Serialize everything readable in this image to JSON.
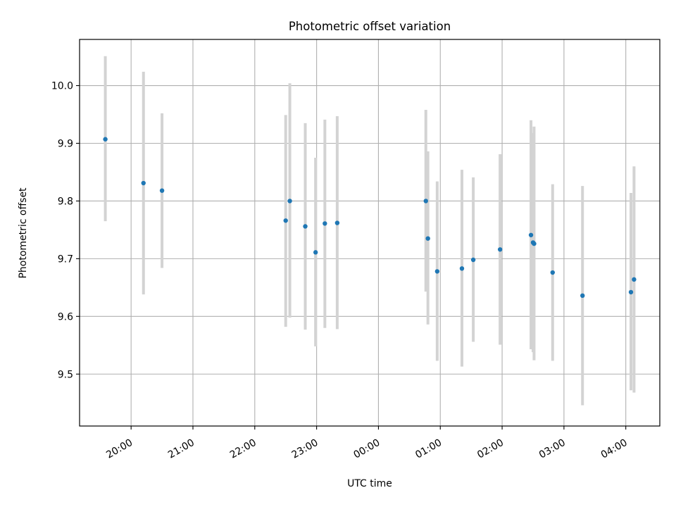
{
  "chart_data": {
    "type": "scatter",
    "title": "Photometric offset variation",
    "xlabel": "UTC time",
    "ylabel": "Photometric offset",
    "x_axis_type": "time",
    "xlim": [
      "2024-01-01T19:10",
      "2024-01-02T04:33"
    ],
    "ylim": [
      9.41,
      10.08
    ],
    "x_ticks": [
      {
        "value": "2024-01-01T20:00",
        "label": "20:00"
      },
      {
        "value": "2024-01-01T21:00",
        "label": "21:00"
      },
      {
        "value": "2024-01-01T22:00",
        "label": "22:00"
      },
      {
        "value": "2024-01-01T23:00",
        "label": "23:00"
      },
      {
        "value": "2024-01-02T00:00",
        "label": "00:00"
      },
      {
        "value": "2024-01-02T01:00",
        "label": "01:00"
      },
      {
        "value": "2024-01-02T02:00",
        "label": "02:00"
      },
      {
        "value": "2024-01-02T03:00",
        "label": "03:00"
      },
      {
        "value": "2024-01-02T04:00",
        "label": "04:00"
      }
    ],
    "y_ticks": [
      {
        "value": 9.5,
        "label": "9.5"
      },
      {
        "value": 9.6,
        "label": "9.6"
      },
      {
        "value": 9.7,
        "label": "9.7"
      },
      {
        "value": 9.8,
        "label": "9.8"
      },
      {
        "value": 9.9,
        "label": "9.9"
      },
      {
        "value": 10.0,
        "label": "10.0"
      }
    ],
    "grid": true,
    "marker_color": "#1f77b4",
    "errorbar_color": "#d3d3d3",
    "points": [
      {
        "x": "2024-01-01T19:35",
        "y": 9.907,
        "low": 9.765,
        "high": 10.051
      },
      {
        "x": "2024-01-01T20:12",
        "y": 9.831,
        "low": 9.638,
        "high": 10.024
      },
      {
        "x": "2024-01-01T20:30",
        "y": 9.818,
        "low": 9.684,
        "high": 9.952
      },
      {
        "x": "2024-01-01T22:30",
        "y": 9.766,
        "low": 9.582,
        "high": 9.949
      },
      {
        "x": "2024-01-01T22:34",
        "y": 9.8,
        "low": 9.598,
        "high": 10.004
      },
      {
        "x": "2024-01-01T22:49",
        "y": 9.756,
        "low": 9.577,
        "high": 9.935
      },
      {
        "x": "2024-01-01T22:59",
        "y": 9.711,
        "low": 9.548,
        "high": 9.875
      },
      {
        "x": "2024-01-01T23:08",
        "y": 9.761,
        "low": 9.58,
        "high": 9.941
      },
      {
        "x": "2024-01-01T23:20",
        "y": 9.762,
        "low": 9.578,
        "high": 9.947
      },
      {
        "x": "2024-01-02T00:46",
        "y": 9.8,
        "low": 9.643,
        "high": 9.958
      },
      {
        "x": "2024-01-02T00:48",
        "y": 9.735,
        "low": 9.586,
        "high": 9.886
      },
      {
        "x": "2024-01-02T00:57",
        "y": 9.678,
        "low": 9.523,
        "high": 9.834
      },
      {
        "x": "2024-01-02T01:21",
        "y": 9.683,
        "low": 9.513,
        "high": 9.854
      },
      {
        "x": "2024-01-02T01:32",
        "y": 9.698,
        "low": 9.556,
        "high": 9.841
      },
      {
        "x": "2024-01-02T01:58",
        "y": 9.716,
        "low": 9.551,
        "high": 9.881
      },
      {
        "x": "2024-01-02T02:28",
        "y": 9.741,
        "low": 9.543,
        "high": 9.94
      },
      {
        "x": "2024-01-02T02:30",
        "y": 9.728,
        "low": 9.538,
        "high": 9.918
      },
      {
        "x": "2024-01-02T02:31",
        "y": 9.726,
        "low": 9.524,
        "high": 9.929
      },
      {
        "x": "2024-01-02T02:49",
        "y": 9.676,
        "low": 9.523,
        "high": 9.829
      },
      {
        "x": "2024-01-02T03:18",
        "y": 9.636,
        "low": 9.446,
        "high": 9.826
      },
      {
        "x": "2024-01-02T04:05",
        "y": 9.642,
        "low": 9.472,
        "high": 9.814
      },
      {
        "x": "2024-01-02T04:08",
        "y": 9.664,
        "low": 9.468,
        "high": 9.86
      }
    ]
  }
}
